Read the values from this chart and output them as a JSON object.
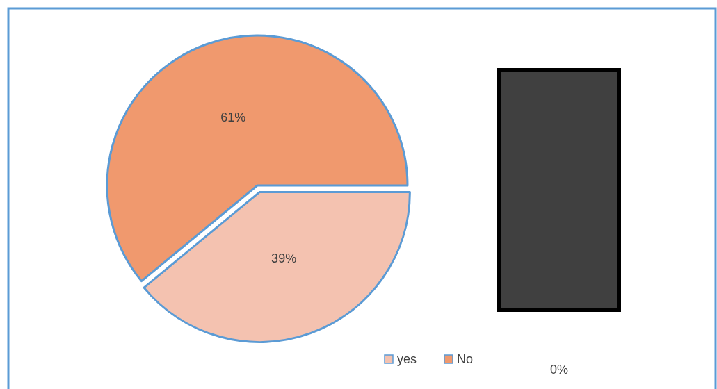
{
  "chart_data": {
    "type": "pie",
    "categories": [
      "yes",
      "No"
    ],
    "values": [
      39,
      61
    ],
    "colors": [
      "#f4c2b0",
      "#f0996e"
    ],
    "value_labels": [
      "39%",
      "61%"
    ],
    "legend": "bottom",
    "annotations": [
      "0%"
    ]
  }
}
